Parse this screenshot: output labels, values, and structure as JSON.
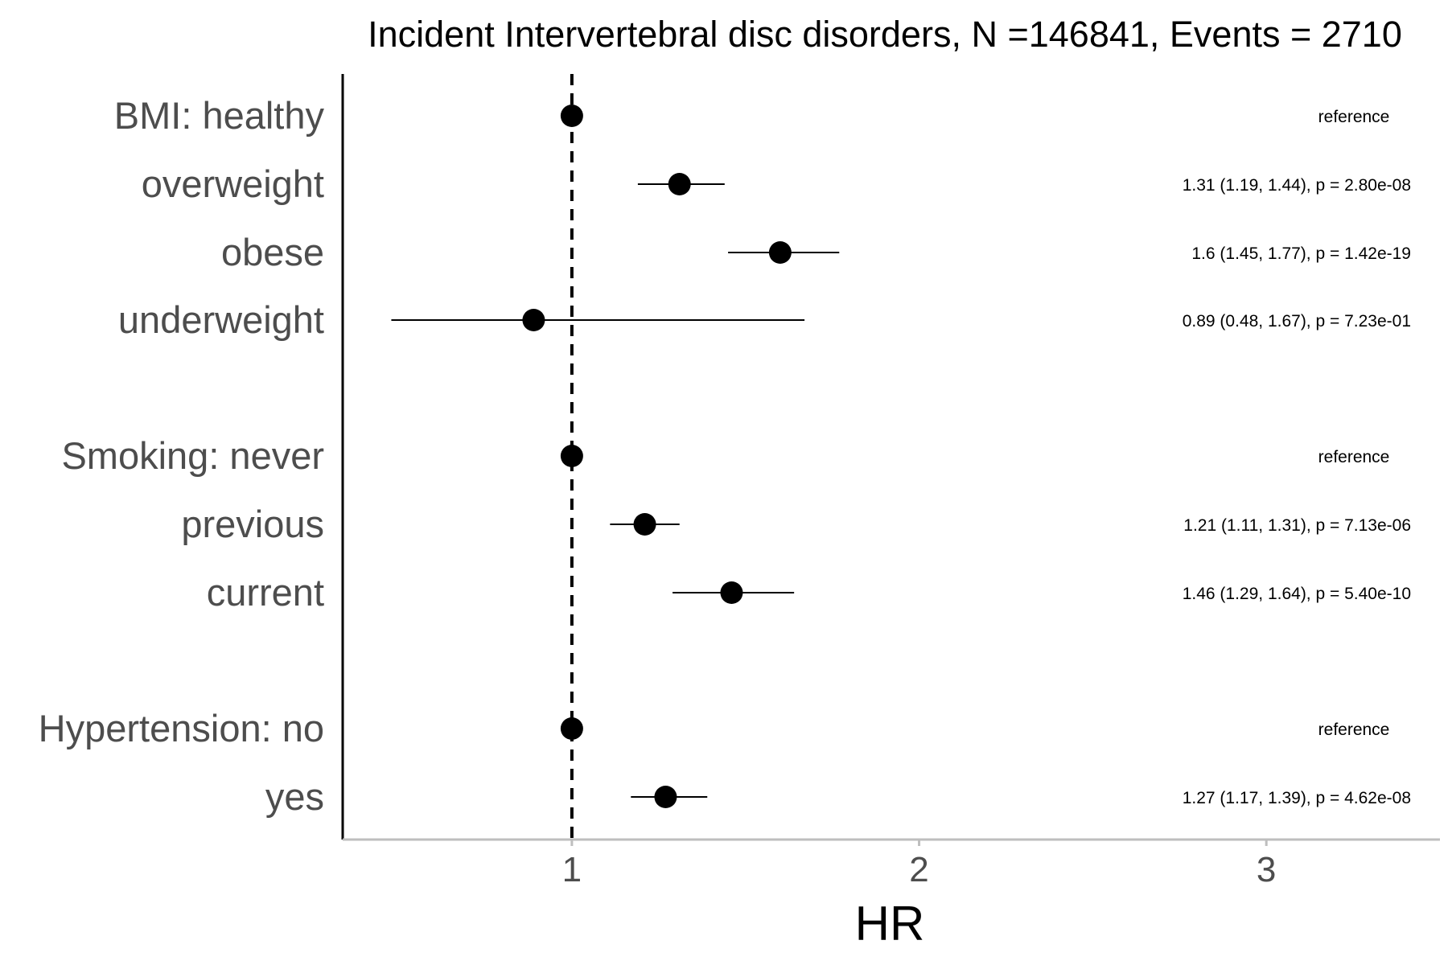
{
  "chart_data": {
    "type": "forest",
    "title": "Incident Intervertebral disc disorders, N =146841, Events = 2710",
    "xlabel": "HR",
    "xlim": [
      0.34,
      3.5
    ],
    "xticks": [
      "1",
      "2",
      "3"
    ],
    "reference_line": 1,
    "rows": [
      {
        "label": "BMI: healthy",
        "hr": 1,
        "lo": null,
        "hi": null,
        "text": "reference"
      },
      {
        "label": "overweight",
        "hr": 1.31,
        "lo": 1.19,
        "hi": 1.44,
        "text": "1.31 (1.19, 1.44), p = 2.80e-08"
      },
      {
        "label": "obese",
        "hr": 1.6,
        "lo": 1.45,
        "hi": 1.77,
        "text": "1.6 (1.45, 1.77), p = 1.42e-19"
      },
      {
        "label": "underweight",
        "hr": 0.89,
        "lo": 0.48,
        "hi": 1.67,
        "text": "0.89 (0.48, 1.67), p = 7.23e-01"
      },
      {
        "label": "Smoking: never",
        "hr": 1,
        "lo": null,
        "hi": null,
        "text": "reference"
      },
      {
        "label": "previous",
        "hr": 1.21,
        "lo": 1.11,
        "hi": 1.31,
        "text": "1.21 (1.11, 1.31), p = 7.13e-06"
      },
      {
        "label": "current",
        "hr": 1.46,
        "lo": 1.29,
        "hi": 1.64,
        "text": "1.46 (1.29, 1.64), p = 5.40e-10"
      },
      {
        "label": "Hypertension: no",
        "hr": 1,
        "lo": null,
        "hi": null,
        "text": "reference"
      },
      {
        "label": "yes",
        "hr": 1.27,
        "lo": 1.17,
        "hi": 1.39,
        "text": "1.27 (1.17, 1.39), p = 4.62e-08"
      }
    ],
    "grid": false,
    "legend": "none",
    "colors": {
      "point": "#000000",
      "label": "#4d4d4d",
      "axis": "#bebebe"
    }
  }
}
